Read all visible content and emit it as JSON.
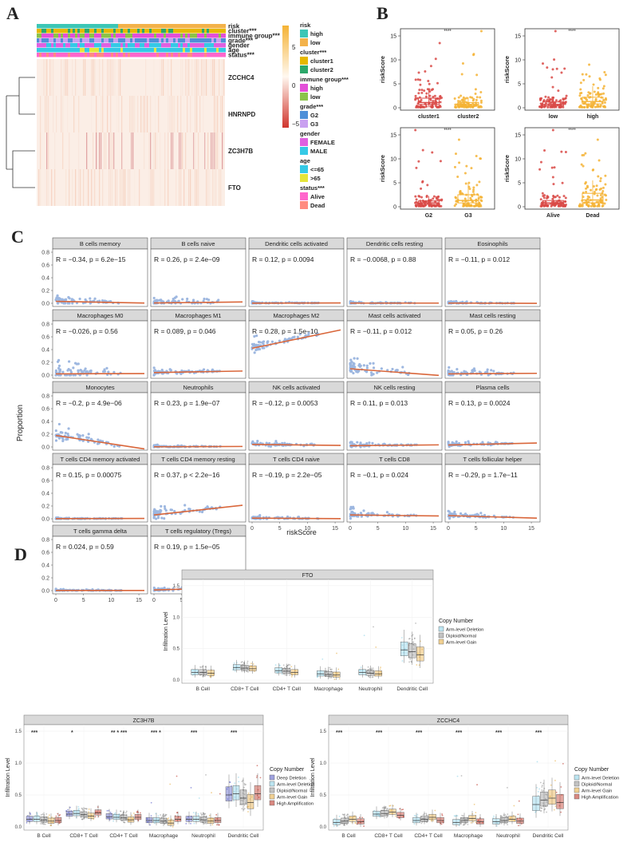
{
  "panel_labels": {
    "a": "A",
    "b": "B",
    "c": "C",
    "d": "D"
  },
  "colors": {
    "risk_high": "#3cc6b6",
    "risk_low": "#f3b24a",
    "cluster1": "#e6b800",
    "cluster2": "#2ca86a",
    "immune_high": "#e34fd8",
    "immune_low": "#8bc34a",
    "g2": "#4e8fd8",
    "g3": "#c9a0f0",
    "female": "#e060e0",
    "male": "#35c9e6",
    "age_le65": "#35c9e6",
    "age_gt65": "#e5e53a",
    "alive": "#ff66cc",
    "dead": "#ff8a80",
    "box_red": "#d94a47",
    "box_yellow": "#f5b335",
    "scatter_point": "#9db7e0",
    "reg_line": "#d9663a",
    "strip_header": "#d9d9d9"
  },
  "chart_data": [
    {
      "id": "A",
      "type": "heatmap",
      "annotation_rows": [
        "risk",
        "cluster***",
        "immune group***",
        "grade***",
        "gender",
        "age",
        "status***"
      ],
      "gene_rows": [
        "ZCCHC4",
        "HNRNPD",
        "ZC3H7B",
        "FTO"
      ],
      "colorbar": {
        "ticks": [
          "5",
          "0",
          "−5"
        ],
        "range": [
          -7,
          7
        ]
      },
      "legend": [
        {
          "title": "risk",
          "items": [
            {
              "label": "high",
              "color": "#3cc6b6"
            },
            {
              "label": "low",
              "color": "#f3b24a"
            }
          ]
        },
        {
          "title": "cluster***",
          "items": [
            {
              "label": "cluster1",
              "color": "#e6b800"
            },
            {
              "label": "cluster2",
              "color": "#2ca86a"
            }
          ]
        },
        {
          "title": "immune group***",
          "items": [
            {
              "label": "high",
              "color": "#e34fd8"
            },
            {
              "label": "low",
              "color": "#8bc34a"
            }
          ]
        },
        {
          "title": "grade***",
          "items": [
            {
              "label": "G2",
              "color": "#4e8fd8"
            },
            {
              "label": "G3",
              "color": "#c9a0f0"
            }
          ]
        },
        {
          "title": "gender",
          "items": [
            {
              "label": "FEMALE",
              "color": "#e060e0"
            },
            {
              "label": "MALE",
              "color": "#35c9e6"
            }
          ]
        },
        {
          "title": "age",
          "items": [
            {
              "label": "<=65",
              "color": "#35c9e6"
            },
            {
              "label": ">65",
              "color": "#e5e53a"
            }
          ]
        },
        {
          "title": "status***",
          "items": [
            {
              "label": "Alive",
              "color": "#ff66cc"
            },
            {
              "label": "Dead",
              "color": "#ff8a80"
            }
          ]
        }
      ]
    },
    {
      "id": "B",
      "type": "box",
      "ylabel": "riskScore",
      "ylim": [
        0,
        16
      ],
      "yticks": [
        0,
        5,
        10,
        15
      ],
      "significance": "****",
      "panels": [
        {
          "groups": [
            {
              "name": "cluster1",
              "q1": 0.7,
              "median": 1.1,
              "q3": 2.0,
              "lo": 0.1,
              "hi": 4.0,
              "max": 13.5,
              "color": "#d94a47"
            },
            {
              "name": "cluster2",
              "q1": 0.4,
              "median": 0.7,
              "q3": 1.1,
              "lo": 0.1,
              "hi": 2.2,
              "max": 16.0,
              "color": "#f5b335"
            }
          ]
        },
        {
          "groups": [
            {
              "name": "low",
              "q1": 0.4,
              "median": 0.7,
              "q3": 1.2,
              "lo": 0.1,
              "hi": 2.3,
              "max": 16.0,
              "color": "#d94a47"
            },
            {
              "name": "high",
              "q1": 0.8,
              "median": 1.3,
              "q3": 2.2,
              "lo": 0.1,
              "hi": 4.5,
              "max": 9.0,
              "color": "#f5b335"
            }
          ]
        },
        {
          "groups": [
            {
              "name": "G2",
              "q1": 0.5,
              "median": 0.8,
              "q3": 1.2,
              "lo": 0.1,
              "hi": 2.2,
              "max": 16.0,
              "color": "#d94a47"
            },
            {
              "name": "G3",
              "q1": 0.8,
              "median": 1.3,
              "q3": 2.5,
              "lo": 0.1,
              "hi": 5.0,
              "max": 14.0,
              "color": "#f5b335"
            }
          ]
        },
        {
          "groups": [
            {
              "name": "Alive",
              "q1": 0.5,
              "median": 0.8,
              "q3": 1.3,
              "lo": 0.1,
              "hi": 2.5,
              "max": 16.0,
              "color": "#d94a47"
            },
            {
              "name": "Dead",
              "q1": 0.8,
              "median": 1.4,
              "q3": 2.8,
              "lo": 0.1,
              "hi": 5.5,
              "max": 14.0,
              "color": "#f5b335"
            }
          ]
        }
      ]
    },
    {
      "id": "C",
      "type": "scatter",
      "xlabel": "riskScore",
      "ylabel": "Proportion",
      "xlim": [
        0,
        16
      ],
      "ylim": [
        0,
        0.8
      ],
      "xticks": [
        0,
        5,
        10,
        15
      ],
      "yticks": [
        0.0,
        0.2,
        0.4,
        0.6,
        0.8
      ],
      "facets": [
        {
          "title": "B cells memory",
          "label": "R = −0.34, p = 6.2e−15",
          "intercept": 0.03,
          "slope": -0.0016,
          "spread": 0.25
        },
        {
          "title": "B cells naive",
          "label": "R = 0.26, p = 2.4e−09",
          "intercept": 0.005,
          "slope": 0.001,
          "spread": 0.2
        },
        {
          "title": "Dendritic cells activated",
          "label": "R = 0.12, p = 0.0094",
          "intercept": 0.002,
          "slope": 0.0002,
          "spread": 0.05
        },
        {
          "title": "Dendritic cells resting",
          "label": "R = −0.0068, p = 0.88",
          "intercept": 0.003,
          "slope": 0.0,
          "spread": 0.05
        },
        {
          "title": "Eosinophils",
          "label": "R = −0.11, p = 0.012",
          "intercept": 0.003,
          "slope": -0.0002,
          "spread": 0.05
        },
        {
          "title": "Macrophages M0",
          "label": "R = −0.026, p = 0.56",
          "intercept": 0.02,
          "slope": 0.0003,
          "spread": 0.35
        },
        {
          "title": "Macrophages M1",
          "label": "R = 0.089, p = 0.046",
          "intercept": 0.04,
          "slope": 0.0015,
          "spread": 0.14
        },
        {
          "title": "Macrophages M2",
          "label": "R = 0.28, p = 1.5e−10",
          "intercept": 0.42,
          "slope": 0.018,
          "spread": 0.3
        },
        {
          "title": "Mast cells activated",
          "label": "R = −0.11, p = 0.012",
          "intercept": 0.1,
          "slope": -0.0065,
          "spread": 0.35
        },
        {
          "title": "Mast cells resting",
          "label": "R = 0.05, p = 0.26",
          "intercept": 0.02,
          "slope": 0.0005,
          "spread": 0.2
        },
        {
          "title": "Monocytes",
          "label": "R = −0.2, p = 4.9e−06",
          "intercept": 0.18,
          "slope": -0.014,
          "spread": 0.3
        },
        {
          "title": "Neutrophils",
          "label": "R = 0.23, p = 1.9e−07",
          "intercept": 0.003,
          "slope": 0.0003,
          "spread": 0.05
        },
        {
          "title": "NK cells activated",
          "label": "R = −0.12, p = 0.0053",
          "intercept": 0.04,
          "slope": -0.001,
          "spread": 0.12
        },
        {
          "title": "NK cells resting",
          "label": "R = 0.11, p = 0.013",
          "intercept": 0.02,
          "slope": 0.0008,
          "spread": 0.1
        },
        {
          "title": "Plasma cells",
          "label": "R = 0.13, p = 0.0024",
          "intercept": 0.03,
          "slope": 0.002,
          "spread": 0.1
        },
        {
          "title": "T cells CD4 memory activated",
          "label": "R = 0.15, p = 0.00075",
          "intercept": 0.002,
          "slope": 0.0002,
          "spread": 0.03
        },
        {
          "title": "T cells CD4 memory resting",
          "label": "R = 0.37, p < 2.2e−16",
          "intercept": 0.06,
          "slope": 0.0095,
          "spread": 0.25
        },
        {
          "title": "T cells CD4 naive",
          "label": "R = −0.19, p = 2.2e−05",
          "intercept": 0.01,
          "slope": -0.0005,
          "spread": 0.08
        },
        {
          "title": "T cells CD8",
          "label": "R = −0.1, p = 0.024",
          "intercept": 0.06,
          "slope": -0.001,
          "spread": 0.2
        },
        {
          "title": "T cells follicular helper",
          "label": "R = −0.29, p = 1.7e−11",
          "intercept": 0.05,
          "slope": -0.0025,
          "spread": 0.15
        },
        {
          "title": "T cells gamma delta",
          "label": "R = 0.024, p = 0.59",
          "intercept": 0.002,
          "slope": 0.0,
          "spread": 0.04
        },
        {
          "title": "T cells regulatory (Tregs)",
          "label": "R = 0.19, p = 1.5e−05",
          "intercept": 0.01,
          "slope": 0.0025,
          "spread": 0.08
        }
      ]
    },
    {
      "id": "D1",
      "type": "box",
      "title": "FTO",
      "ylabel": "Infiltration Level",
      "ylim": [
        -0.05,
        1.6
      ],
      "yticks": [
        0.0,
        0.5,
        1.0,
        1.5
      ],
      "cells": [
        "B Cell",
        "CD8+ T Cell",
        "CD4+ T Cell",
        "Macrophage",
        "Neutrophil",
        "Dendritic Cell"
      ],
      "legend_title": "Copy Number",
      "series": [
        {
          "name": "Arm-level Deletion",
          "color": "#8fd3e8",
          "medians": [
            0.12,
            0.2,
            0.15,
            0.1,
            0.12,
            0.48
          ]
        },
        {
          "name": "Diploid/Normal",
          "color": "#9a9a9a",
          "medians": [
            0.12,
            0.19,
            0.14,
            0.09,
            0.11,
            0.45
          ]
        },
        {
          "name": "Arm-level Gain",
          "color": "#e8b04a",
          "medians": [
            0.11,
            0.18,
            0.12,
            0.08,
            0.1,
            0.4
          ]
        }
      ],
      "stars": [
        "",
        "",
        "",
        "",
        "",
        ""
      ]
    },
    {
      "id": "D2",
      "type": "box",
      "title": "ZC3H7B",
      "ylabel": "Infiltration Level",
      "ylim": [
        -0.05,
        1.6
      ],
      "yticks": [
        0.0,
        0.5,
        1.0,
        1.5
      ],
      "cells": [
        "B Cell",
        "CD8+ T Cell",
        "CD4+ T Cell",
        "Macrophage",
        "Neutrophil",
        "Dendritic Cell"
      ],
      "legend_title": "Copy Number",
      "series": [
        {
          "name": "Deep Deletion",
          "color": "#5d63c9",
          "medians": [
            0.12,
            0.2,
            0.16,
            0.1,
            0.12,
            0.5
          ]
        },
        {
          "name": "Arm-level Deletion",
          "color": "#8fd3e8",
          "medians": [
            0.12,
            0.21,
            0.15,
            0.1,
            0.12,
            0.52
          ]
        },
        {
          "name": "Diploid/Normal",
          "color": "#9a9a9a",
          "medians": [
            0.11,
            0.19,
            0.14,
            0.09,
            0.11,
            0.45
          ]
        },
        {
          "name": "Arm-level Gain",
          "color": "#e8b04a",
          "medians": [
            0.09,
            0.17,
            0.11,
            0.06,
            0.09,
            0.38
          ]
        },
        {
          "name": "High Amplification",
          "color": "#c0392b",
          "medians": [
            0.1,
            0.22,
            0.15,
            0.12,
            0.1,
            0.52
          ]
        }
      ],
      "stars": [
        "***",
        "*",
        "**  *  ***",
        "***  *",
        "***",
        "***"
      ]
    },
    {
      "id": "D3",
      "type": "box",
      "title": "ZCCHC4",
      "ylabel": "Infiltration Level",
      "ylim": [
        -0.05,
        1.6
      ],
      "yticks": [
        0.0,
        0.5,
        1.0,
        1.5
      ],
      "cells": [
        "B Cell",
        "CD8+ T Cell",
        "CD4+ T Cell",
        "Macrophage",
        "Neutrophil",
        "Dendritic Cell"
      ],
      "legend_title": "Copy Number",
      "series": [
        {
          "name": "Arm-level Deletion",
          "color": "#8fd3e8",
          "medians": [
            0.07,
            0.2,
            0.1,
            0.07,
            0.08,
            0.35
          ]
        },
        {
          "name": "Diploid/Normal",
          "color": "#9a9a9a",
          "medians": [
            0.09,
            0.21,
            0.12,
            0.1,
            0.1,
            0.42
          ]
        },
        {
          "name": "Arm-level Gain",
          "color": "#e8b04a",
          "medians": [
            0.12,
            0.23,
            0.15,
            0.13,
            0.12,
            0.45
          ]
        },
        {
          "name": "High Amplification",
          "color": "#c0392b",
          "medians": [
            0.08,
            0.18,
            0.1,
            0.08,
            0.09,
            0.38
          ]
        }
      ],
      "stars": [
        "***",
        "***",
        "***",
        "***",
        "***",
        "***"
      ]
    }
  ]
}
